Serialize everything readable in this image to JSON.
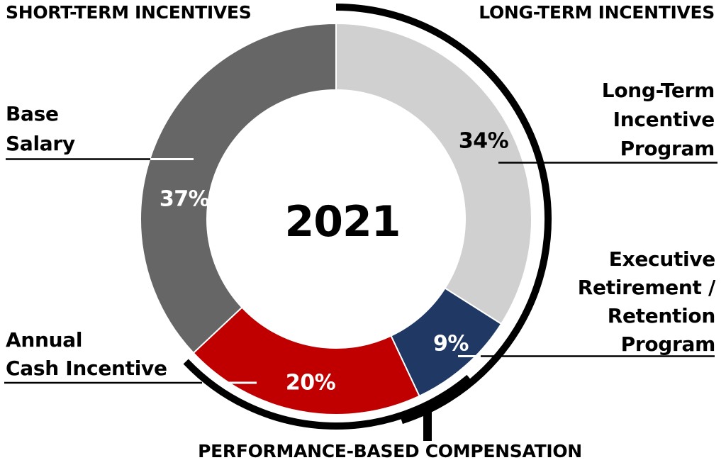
{
  "headers": {
    "short_term": "SHORT-TERM INCENTIVES",
    "long_term": "LONG-TERM INCENTIVES",
    "performance": "PERFORMANCE-BASED COMPENSATION"
  },
  "center_label": "2021",
  "labels": {
    "base_salary_lines": [
      "Base",
      "Salary"
    ],
    "annual_cash_lines": [
      "Annual",
      "Cash Incentive"
    ],
    "ltip_lines": [
      "Long-Term",
      "Incentive",
      "Program"
    ],
    "err_lines": [
      "Executive",
      "Retirement /",
      "Retention",
      "Program"
    ]
  },
  "chart_data": {
    "type": "pie",
    "subtype": "donut",
    "title": "2021",
    "start_angle_deg": 0,
    "direction": "clockwise",
    "legend_position": "none",
    "segments": [
      {
        "label": "Long-Term Incentive Program",
        "value": 34,
        "pct_label": "34%",
        "color": "#d0d0d0",
        "pct_text_color": "#000000",
        "group": "LONG-TERM INCENTIVES"
      },
      {
        "label": "Executive Retirement / Retention Program",
        "value": 9,
        "pct_label": "9%",
        "color": "#1f3864",
        "pct_text_color": "#ffffff",
        "group": "LONG-TERM INCENTIVES"
      },
      {
        "label": "Annual Cash Incentive",
        "value": 20,
        "pct_label": "20%",
        "color": "#c00000",
        "pct_text_color": "#ffffff",
        "group": "SHORT-TERM INCENTIVES / PERFORMANCE-BASED COMPENSATION"
      },
      {
        "label": "Base Salary",
        "value": 37,
        "pct_label": "37%",
        "color": "#666666",
        "pct_text_color": "#ffffff",
        "group": "SHORT-TERM INCENTIVES"
      }
    ],
    "annotation_arcs": [
      {
        "name": "LONG-TERM INCENTIVES",
        "covers_pct": 43,
        "color": "#000000"
      },
      {
        "name": "PERFORMANCE-BASED COMPENSATION",
        "covers_pct": 29,
        "color": "#000000"
      }
    ],
    "colors": {
      "arc_black": "#000000",
      "separator_white": "#ffffff"
    }
  }
}
